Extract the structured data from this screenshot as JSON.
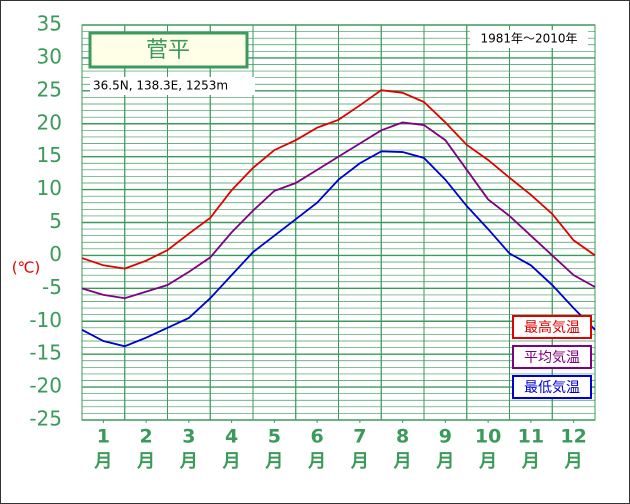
{
  "chart_data": {
    "type": "line",
    "title": "菅平",
    "subtitle": "36.5N,  138.3E,  1253m",
    "period": "1981年〜2010年",
    "y_label": "(℃)",
    "x_unit": "月",
    "x": [
      0.5,
      1,
      1.5,
      2,
      2.5,
      3,
      3.5,
      4,
      4.5,
      5,
      5.5,
      6,
      6.5,
      7,
      7.5,
      8,
      8.5,
      9,
      9.5,
      10,
      10.5,
      11,
      11.5,
      12,
      12.5
    ],
    "xlim": [
      0.5,
      12.5
    ],
    "xticks": [
      1,
      2,
      3,
      4,
      5,
      6,
      7,
      8,
      9,
      10,
      11,
      12
    ],
    "ylim": [
      -25,
      35
    ],
    "yticks": [
      -25,
      -20,
      -15,
      -10,
      -5,
      0,
      5,
      10,
      15,
      20,
      25,
      30,
      35
    ],
    "grid": true,
    "legend": "lower right",
    "series": [
      {
        "name": "最高気温",
        "color": "#e00000",
        "values": [
          -0.4,
          -1.5,
          -2,
          -0.8,
          0.8,
          3.3,
          5.7,
          9.9,
          13.3,
          16,
          17.5,
          19.4,
          20.6,
          22.8,
          25.1,
          24.7,
          23.3,
          20.2,
          16.8,
          14.5,
          11.8,
          9.2,
          6.3,
          2.3,
          0
        ]
      },
      {
        "name": "平均気温",
        "color": "#800080",
        "values": [
          -5,
          -6,
          -6.5,
          -5.5,
          -4.5,
          -2.5,
          -0.3,
          3.5,
          6.8,
          9.8,
          11,
          13,
          15,
          17,
          19,
          20.2,
          19.8,
          17.5,
          13,
          8.5,
          6,
          3,
          0,
          -3,
          -4.8
        ]
      },
      {
        "name": "最低気温",
        "color": "#0000d0",
        "values": [
          -11.3,
          -13,
          -13.8,
          -12.5,
          -11,
          -9.5,
          -6.5,
          -3,
          0.5,
          3,
          5.5,
          8,
          11.5,
          14,
          15.8,
          15.7,
          14.8,
          11.5,
          7.5,
          4,
          0.3,
          -1.5,
          -4.5,
          -8,
          -11.3
        ]
      }
    ]
  }
}
